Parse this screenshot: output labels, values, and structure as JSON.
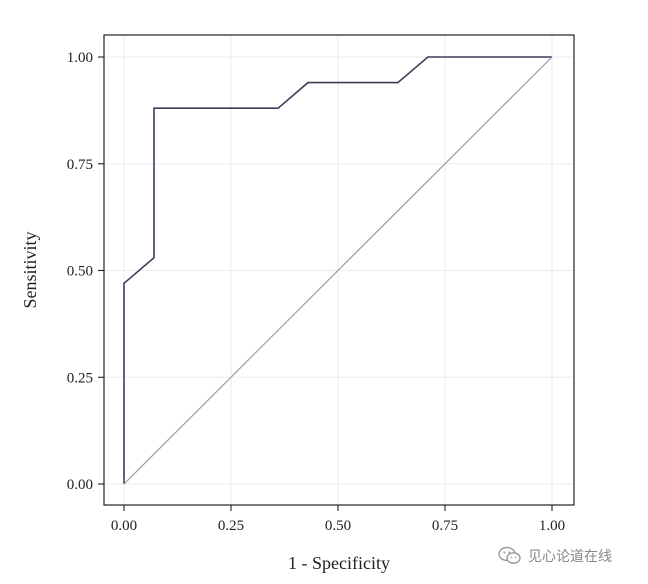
{
  "chart_data": {
    "type": "line",
    "xlabel": "1 - Specificity",
    "ylabel": "Sensitivity",
    "xlim": [
      0,
      1
    ],
    "ylim": [
      0,
      1
    ],
    "x_ticks": [
      "0.00",
      "0.25",
      "0.50",
      "0.75",
      "1.00"
    ],
    "y_ticks": [
      "0.00",
      "0.25",
      "0.50",
      "0.75",
      "1.00"
    ],
    "grid": true,
    "series": [
      {
        "x": [
          0.0,
          0.0,
          0.07,
          0.07,
          0.36,
          0.43,
          0.64,
          0.71,
          1.0
        ],
        "y": [
          0.0,
          0.47,
          0.53,
          0.88,
          0.88,
          0.94,
          0.94,
          1.0,
          1.0
        ],
        "color": "#3b3f5a"
      },
      {
        "x": [
          0.0,
          1.0
        ],
        "y": [
          0.0,
          1.0
        ],
        "color": "#9a9ca8",
        "reference": true
      }
    ]
  },
  "watermark": {
    "text": "见心论道在线",
    "icon": "wechat-icon"
  }
}
